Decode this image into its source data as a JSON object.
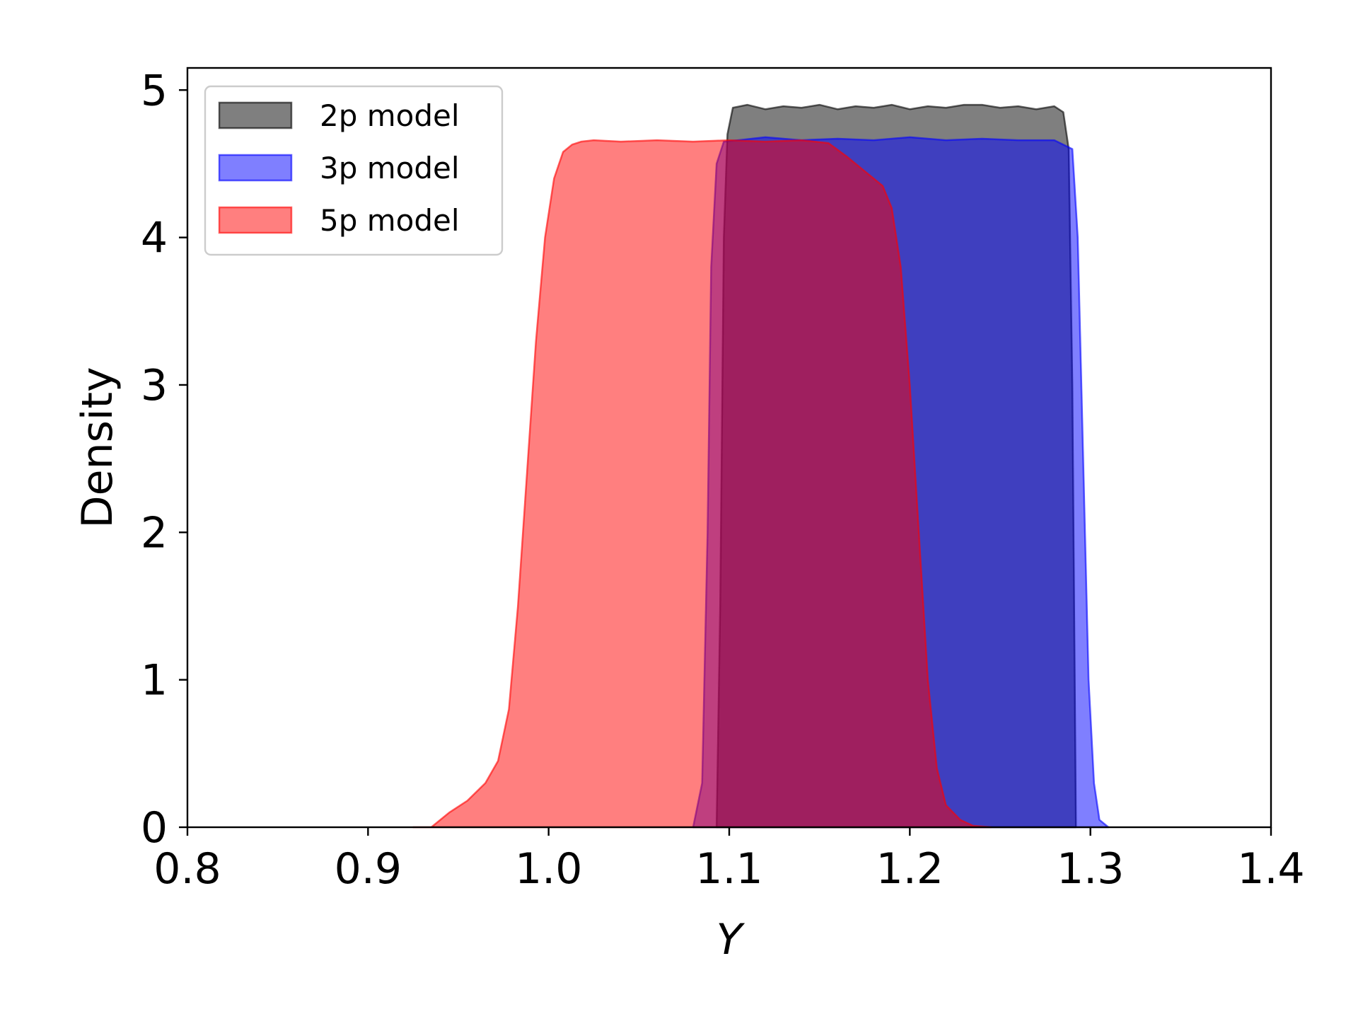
{
  "chart_data": {
    "type": "area",
    "xlabel": "Y",
    "ylabel": "Density",
    "xlim": [
      0.8,
      1.4
    ],
    "ylim": [
      0,
      5.15
    ],
    "xticks": [
      "0.8",
      "0.9",
      "1.0",
      "1.1",
      "1.2",
      "1.3",
      "1.4"
    ],
    "yticks": [
      "0",
      "1",
      "2",
      "3",
      "4",
      "5"
    ],
    "grid": false,
    "legend_position": "upper-left",
    "series": [
      {
        "name": "2p model",
        "color": "#000000",
        "x": [
          1.093,
          1.095,
          1.097,
          1.099,
          1.102,
          1.11,
          1.12,
          1.13,
          1.14,
          1.15,
          1.16,
          1.17,
          1.18,
          1.19,
          1.2,
          1.21,
          1.22,
          1.23,
          1.24,
          1.25,
          1.26,
          1.27,
          1.28,
          1.285,
          1.288,
          1.29,
          1.292
        ],
        "y": [
          0.0,
          1.5,
          4.0,
          4.7,
          4.88,
          4.9,
          4.87,
          4.89,
          4.88,
          4.9,
          4.87,
          4.89,
          4.88,
          4.9,
          4.87,
          4.89,
          4.88,
          4.9,
          4.9,
          4.88,
          4.89,
          4.87,
          4.89,
          4.85,
          4.6,
          3.0,
          0.0
        ]
      },
      {
        "name": "3p model",
        "color": "#0000ff",
        "x": [
          1.08,
          1.085,
          1.088,
          1.09,
          1.093,
          1.097,
          1.105,
          1.12,
          1.14,
          1.16,
          1.18,
          1.2,
          1.22,
          1.24,
          1.26,
          1.28,
          1.29,
          1.293,
          1.296,
          1.299,
          1.302,
          1.305,
          1.31
        ],
        "y": [
          0.0,
          0.3,
          2.0,
          3.8,
          4.5,
          4.65,
          4.66,
          4.68,
          4.66,
          4.67,
          4.66,
          4.68,
          4.66,
          4.67,
          4.66,
          4.66,
          4.6,
          4.0,
          2.5,
          1.0,
          0.3,
          0.05,
          0.0
        ]
      },
      {
        "name": "5p model",
        "color": "#ff0000",
        "x": [
          0.925,
          0.935,
          0.945,
          0.955,
          0.965,
          0.972,
          0.978,
          0.983,
          0.988,
          0.993,
          0.998,
          1.003,
          1.008,
          1.013,
          1.018,
          1.025,
          1.04,
          1.06,
          1.08,
          1.1,
          1.12,
          1.14,
          1.155,
          1.165,
          1.175,
          1.185,
          1.19,
          1.195,
          1.2,
          1.205,
          1.21,
          1.215,
          1.22,
          1.228,
          1.235,
          1.245
        ],
        "y": [
          0.0,
          0.0,
          0.1,
          0.18,
          0.3,
          0.45,
          0.8,
          1.5,
          2.4,
          3.3,
          4.0,
          4.4,
          4.58,
          4.63,
          4.65,
          4.66,
          4.65,
          4.66,
          4.65,
          4.66,
          4.65,
          4.66,
          4.64,
          4.55,
          4.45,
          4.35,
          4.2,
          3.8,
          3.0,
          2.0,
          1.0,
          0.4,
          0.15,
          0.05,
          0.01,
          0.0
        ]
      }
    ]
  }
}
